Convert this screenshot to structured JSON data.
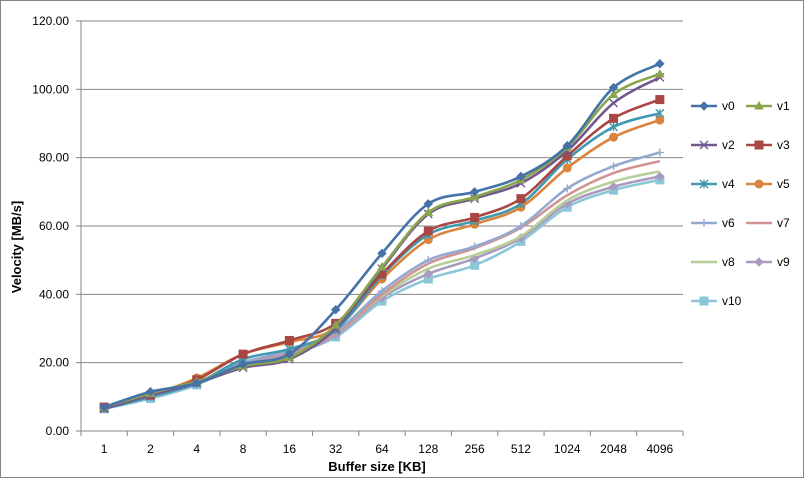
{
  "chart_data": {
    "type": "line",
    "title": "",
    "xlabel": "Buffer size [KB]",
    "ylabel": "Velocity [MB/s]",
    "categories": [
      "1",
      "2",
      "4",
      "8",
      "16",
      "32",
      "64",
      "128",
      "256",
      "512",
      "1024",
      "2048",
      "4096"
    ],
    "ylim": [
      0,
      120
    ],
    "yticks": [
      "0.00",
      "20.00",
      "40.00",
      "60.00",
      "80.00",
      "100.00",
      "120.00"
    ],
    "grid": true,
    "legend_position": "right",
    "series": [
      {
        "name": "v0",
        "color": "#4572A7",
        "marker": "diamond",
        "values": [
          7.0,
          11.5,
          14.0,
          19.5,
          22.5,
          35.5,
          52.0,
          66.5,
          70.0,
          74.5,
          83.5,
          100.5,
          107.5
        ]
      },
      {
        "name": "v1",
        "color": "#89A54E",
        "marker": "triangle",
        "values": [
          7.0,
          11.0,
          14.5,
          19.0,
          21.5,
          31.0,
          48.0,
          64.0,
          68.5,
          73.5,
          83.0,
          98.5,
          104.5
        ]
      },
      {
        "name": "v2",
        "color": "#71588F",
        "marker": "x",
        "values": [
          6.5,
          10.5,
          14.0,
          18.5,
          21.0,
          30.0,
          47.5,
          63.5,
          68.0,
          72.5,
          82.0,
          96.0,
          103.5
        ]
      },
      {
        "name": "v3",
        "color": "#AA4643",
        "marker": "square",
        "values": [
          7.0,
          10.5,
          15.0,
          22.5,
          26.5,
          31.5,
          46.0,
          58.5,
          62.5,
          68.0,
          80.5,
          91.5,
          97.0
        ]
      },
      {
        "name": "v4",
        "color": "#4198AF",
        "marker": "star",
        "values": [
          6.5,
          10.0,
          14.0,
          21.0,
          24.0,
          29.5,
          45.5,
          57.5,
          61.5,
          66.5,
          79.5,
          89.0,
          93.0
        ]
      },
      {
        "name": "v5",
        "color": "#DB843D",
        "marker": "circle",
        "values": [
          7.0,
          10.5,
          15.5,
          22.5,
          26.0,
          30.0,
          44.5,
          56.0,
          60.5,
          65.5,
          77.0,
          86.0,
          91.0
        ]
      },
      {
        "name": "v6",
        "color": "#93A9CF",
        "marker": "plus",
        "values": [
          6.5,
          10.0,
          14.0,
          20.0,
          23.5,
          29.0,
          41.0,
          50.0,
          54.0,
          60.0,
          71.0,
          77.5,
          81.5
        ]
      },
      {
        "name": "v7",
        "color": "#D19392",
        "marker": "none",
        "values": [
          6.5,
          10.0,
          14.0,
          20.0,
          23.0,
          28.5,
          40.0,
          49.0,
          53.5,
          59.5,
          69.0,
          75.5,
          79.0
        ]
      },
      {
        "name": "v8",
        "color": "#B9CD96",
        "marker": "none",
        "values": [
          6.5,
          10.0,
          14.0,
          20.0,
          23.0,
          28.5,
          39.5,
          47.5,
          51.5,
          57.0,
          67.5,
          73.0,
          76.0
        ]
      },
      {
        "name": "v9",
        "color": "#A99BBD",
        "marker": "diamond",
        "values": [
          6.5,
          10.0,
          14.0,
          20.0,
          22.5,
          28.0,
          39.0,
          46.0,
          50.5,
          56.5,
          66.5,
          71.5,
          74.5
        ]
      },
      {
        "name": "v10",
        "color": "#8CC6D9",
        "marker": "square",
        "values": [
          6.5,
          9.5,
          13.5,
          20.0,
          22.5,
          27.5,
          38.0,
          44.5,
          48.5,
          55.5,
          65.5,
          70.5,
          73.5
        ]
      }
    ]
  }
}
